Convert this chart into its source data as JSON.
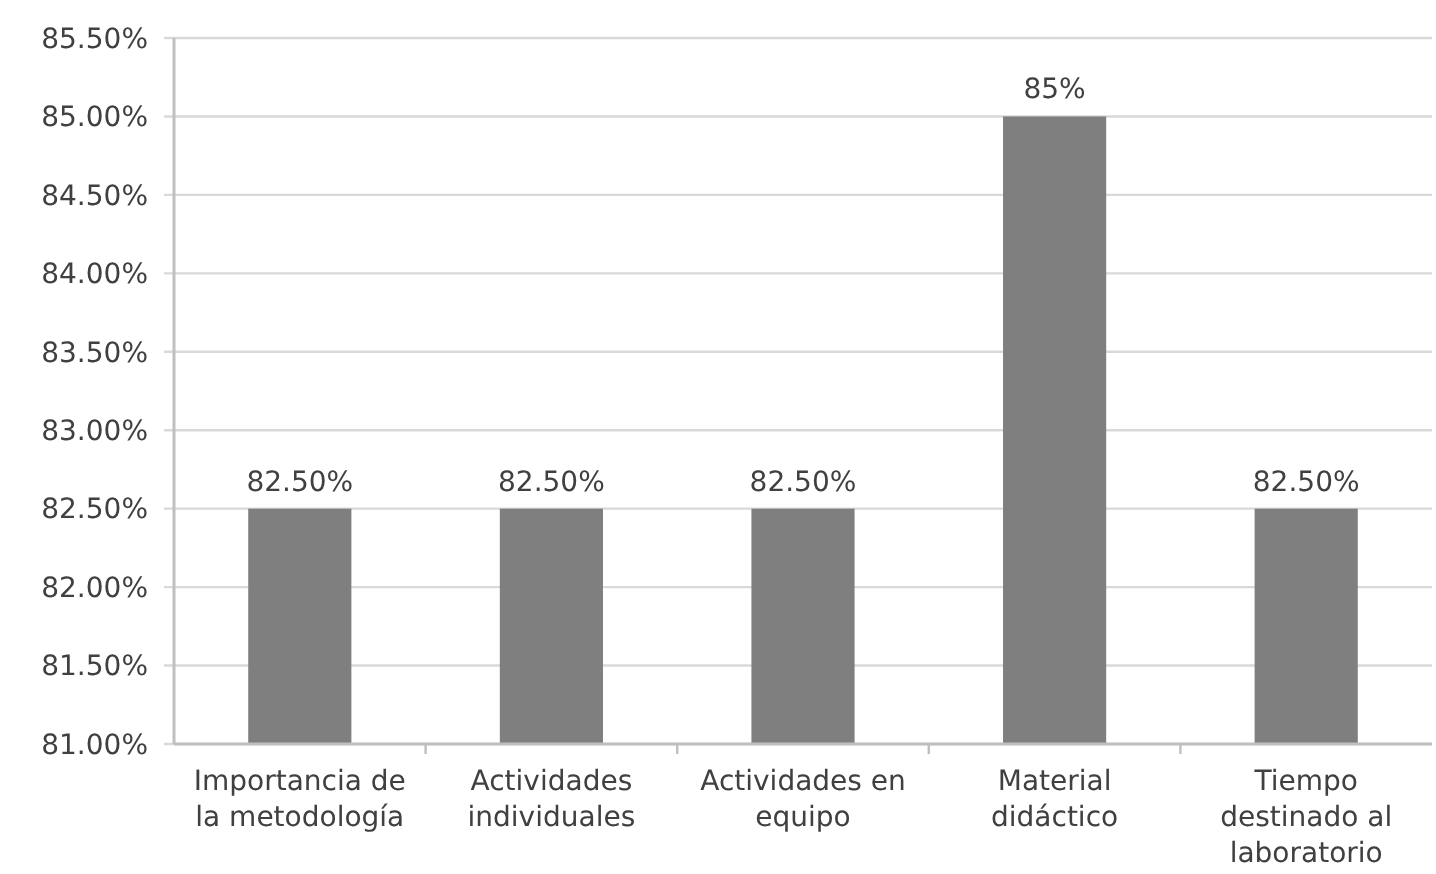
{
  "chart_data": {
    "type": "bar",
    "categories": [
      "Importancia de la metodología",
      "Actividades individuales",
      "Actividades en equipo",
      "Material didáctico",
      "Tiempo destinado al laboratorio"
    ],
    "values": [
      82.5,
      82.5,
      82.5,
      85,
      82.5
    ],
    "color": "#7f7f7f",
    "value_labels": [
      "82.50%",
      "82.50%",
      "82.50%",
      "85%",
      "82.50%"
    ],
    "ylim": [
      81,
      85.5
    ],
    "yticks": [
      {
        "value": 81,
        "label": "81.00%"
      },
      {
        "value": 81.5,
        "label": "81.50%"
      },
      {
        "value": 82,
        "label": "82.00%"
      },
      {
        "value": 82.5,
        "label": "82.50%"
      },
      {
        "value": 83,
        "label": "83.00%"
      },
      {
        "value": 83.5,
        "label": "83.50%"
      },
      {
        "value": 84,
        "label": "84.00%"
      },
      {
        "value": 84.5,
        "label": "84.50%"
      },
      {
        "value": 85,
        "label": "85.00%"
      },
      {
        "value": 85.5,
        "label": "85.50%"
      }
    ],
    "grid": "y"
  }
}
